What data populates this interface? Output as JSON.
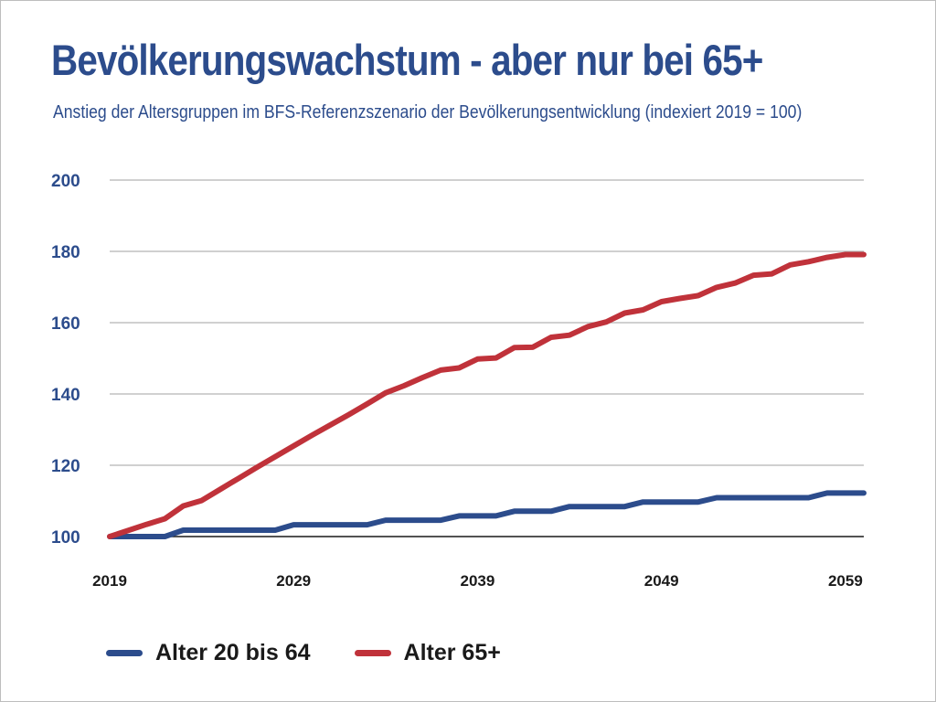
{
  "chart_data": {
    "type": "line",
    "title": "Bevölkerungswachstum - aber nur bei 65+",
    "subtitle": "Anstieg der Altersgruppen im BFS-Referenzszenario der Bevölkerungsentwicklung (indexiert 2019 = 100)",
    "xlabel": "",
    "ylabel": "",
    "x_ticks": [
      "2019",
      "2029",
      "2039",
      "2049",
      "2059"
    ],
    "y_ticks": [
      "100",
      "120",
      "140",
      "160",
      "180",
      "200"
    ],
    "xlim": [
      2019,
      2060
    ],
    "ylim": [
      100,
      200
    ],
    "grid": true,
    "legend_position": "bottom-left",
    "series": [
      {
        "name": "Alter 20 bis 64",
        "color": "#2c4c8c",
        "x": [
          2019,
          2020,
          2021,
          2022,
          2023,
          2024,
          2025,
          2026,
          2027,
          2028,
          2029,
          2030,
          2031,
          2032,
          2033,
          2034,
          2035,
          2036,
          2037,
          2038,
          2039,
          2040,
          2041,
          2042,
          2043,
          2044,
          2045,
          2046,
          2047,
          2048,
          2049,
          2050,
          2051,
          2052,
          2053,
          2054,
          2055,
          2056,
          2057,
          2058,
          2059,
          2060
        ],
        "values": [
          100,
          100,
          100,
          100,
          101.8,
          101.8,
          101.8,
          101.8,
          101.8,
          101.8,
          103.3,
          103.3,
          103.3,
          103.3,
          103.3,
          104.6,
          104.6,
          104.6,
          104.6,
          105.8,
          105.8,
          105.8,
          107.1,
          107.1,
          107.1,
          108.4,
          108.4,
          108.4,
          108.4,
          109.7,
          109.7,
          109.7,
          109.7,
          110.9,
          110.9,
          110.9,
          110.9,
          110.9,
          110.9,
          112.2,
          112.2,
          112.2
        ]
      },
      {
        "name": "Alter 65+",
        "color": "#c0323a",
        "x": [
          2019,
          2020,
          2021,
          2022,
          2023,
          2024,
          2025,
          2026,
          2027,
          2028,
          2029,
          2030,
          2031,
          2032,
          2033,
          2034,
          2035,
          2036,
          2037,
          2038,
          2039,
          2040,
          2041,
          2042,
          2043,
          2044,
          2045,
          2046,
          2047,
          2048,
          2049,
          2050,
          2051,
          2052,
          2053,
          2054,
          2055,
          2056,
          2057,
          2058,
          2059,
          2060
        ],
        "values": [
          100,
          101.7,
          103.4,
          105,
          108.6,
          110.1,
          113.2,
          116.3,
          119.4,
          122.4,
          125.4,
          128.4,
          131.3,
          134.2,
          137.2,
          140.3,
          142.3,
          144.6,
          146.7,
          147.3,
          149.8,
          150.1,
          153,
          153.1,
          155.9,
          156.5,
          158.9,
          160.2,
          162.7,
          163.6,
          165.9,
          166.8,
          167.6,
          169.9,
          171.1,
          173.3,
          173.7,
          176.2,
          177.1,
          178.3,
          179.1,
          179.1
        ]
      }
    ]
  }
}
